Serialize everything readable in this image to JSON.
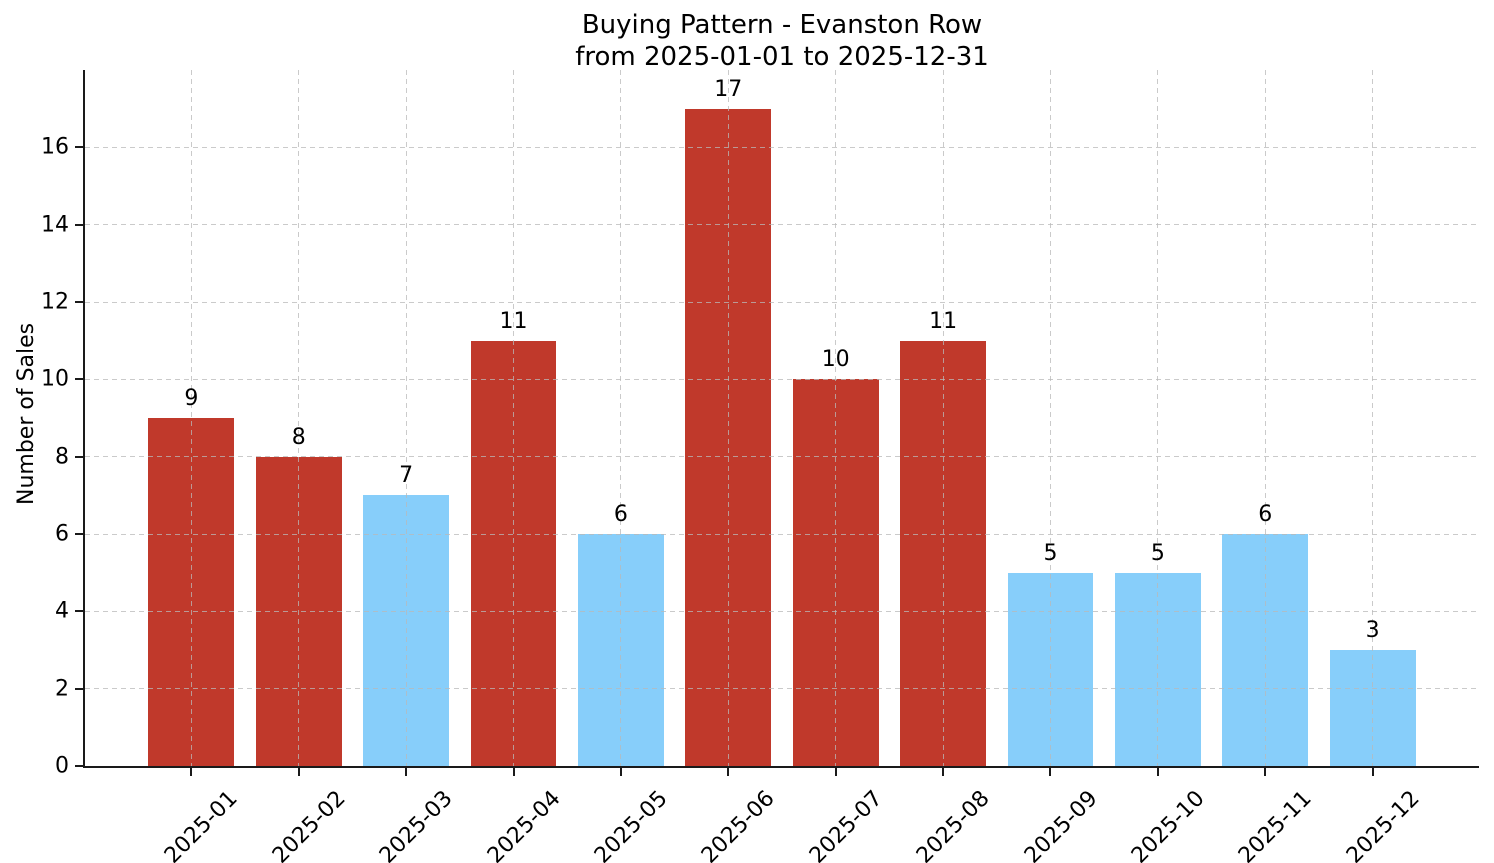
{
  "figure_title": {
    "line1": "Buying Pattern - Evanston Row",
    "line2": "from 2025-01-01 to 2025-12-31"
  },
  "chart_data": {
    "type": "bar",
    "title": "Buying Pattern - Evanston Row\nfrom 2025-01-01 to 2025-12-31",
    "xlabel": "",
    "ylabel": "Number of Sales",
    "categories": [
      "2025-01",
      "2025-02",
      "2025-03",
      "2025-04",
      "2025-05",
      "2025-06",
      "2025-07",
      "2025-08",
      "2025-09",
      "2025-10",
      "2025-11",
      "2025-12"
    ],
    "values": [
      9,
      8,
      7,
      11,
      6,
      17,
      10,
      11,
      5,
      5,
      6,
      3
    ],
    "value_labels": [
      "9",
      "8",
      "7",
      "11",
      "6",
      "17",
      "10",
      "11",
      "5",
      "5",
      "6",
      "3"
    ],
    "bar_colors": [
      "#C0392B",
      "#C0392B",
      "#87CEFA",
      "#C0392B",
      "#87CEFA",
      "#C0392B",
      "#C0392B",
      "#C0392B",
      "#87CEFA",
      "#87CEFA",
      "#87CEFA",
      "#87CEFA"
    ],
    "palette": {
      "red": "#C0392B",
      "blue": "#87CEFA"
    },
    "ylim": [
      0,
      18
    ],
    "yticks": [
      0,
      2,
      4,
      6,
      8,
      10,
      12,
      14,
      16
    ],
    "grid": true,
    "grid_style": "dashed",
    "bar_width_fraction": 0.8,
    "legend_position": "none",
    "axis_color": "#1a1a1a",
    "text_color": "#000000"
  }
}
